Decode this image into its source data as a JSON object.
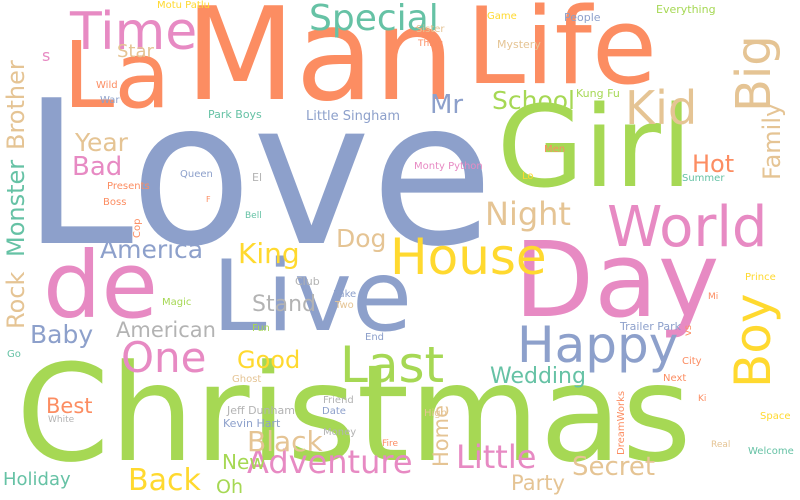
{
  "colors": {
    "background": "#ffffff",
    "orange": "#fc8d62",
    "blue": "#8da0cb",
    "pink": "#e78ac3",
    "green": "#a6d854",
    "yellow": "#ffd92f",
    "tan": "#e5c494",
    "teal": "#66c2a5",
    "gray": "#b3b3b3"
  },
  "words": {
    "love": "Love",
    "man": "Man",
    "la": "La",
    "life": "Life",
    "christmas": "Christmas",
    "girl": "Girl",
    "day": "Day",
    "de": "de",
    "live": "Live",
    "time": "Time",
    "world": "World",
    "house": "House",
    "happy": "Happy",
    "big": "Big",
    "kid": "Kid",
    "boy": "Boy",
    "special": "Special",
    "last": "Last",
    "one": "One",
    "night": "Night",
    "adventure": "Adventure",
    "little": "Little",
    "back": "Back",
    "america": "America",
    "bad": "Bad",
    "year": "Year",
    "king": "King",
    "dog": "Dog",
    "school": "School",
    "mr": "Mr",
    "secret": "Secret",
    "black": "Black",
    "family": "Family",
    "hot": "Hot",
    "monster": "Monster",
    "brother": "Brother",
    "rock": "Rock",
    "baby": "Baby",
    "american": "American",
    "stand": "Stand",
    "good": "Good",
    "wedding": "Wedding",
    "best": "Best",
    "party": "Party",
    "home": "Home",
    "new": "New",
    "oh": "Oh",
    "holiday": "Holiday",
    "star": "Star",
    "s": "s",
    "kung_fu": "Kung Fu",
    "little_singham": "Little Singham",
    "park_boys": "Park Boys",
    "motu_patlu": "Motu Patlu",
    "sister": "Sister",
    "thing": "Thing",
    "game": "Game",
    "people": "People",
    "everything": "Everything",
    "mystery": "Mystery",
    "wild": "Wild",
    "war": "War",
    "men": "Men",
    "lo": "Lo",
    "queen": "Queen",
    "el": "El",
    "presents": "Presents",
    "summer": "Summer",
    "boss": "Boss",
    "f": "F",
    "monty_python": "Monty Python",
    "cop": "Cop",
    "bell": "Bell",
    "prince": "Prince",
    "club": "Club",
    "take": "Take",
    "two": "Two",
    "mi": "Mi",
    "magic": "Magic",
    "fun": "Fun",
    "end": "End",
    "trailer_park": "Trailer Park",
    "vs": "vs",
    "city": "City",
    "go": "Go",
    "ghost": "Ghost",
    "next": "Next",
    "jeff_dunham": "Jeff Dunham",
    "friend": "Friend",
    "date": "Date",
    "dreamworks": "DreamWorks",
    "ki": "Ki",
    "white": "White",
    "high": "High",
    "space": "Space",
    "kevin_hart": "Kevin Hart",
    "money": "Money",
    "fire": "Fire",
    "real": "Real",
    "welcome": "Welcome"
  }
}
